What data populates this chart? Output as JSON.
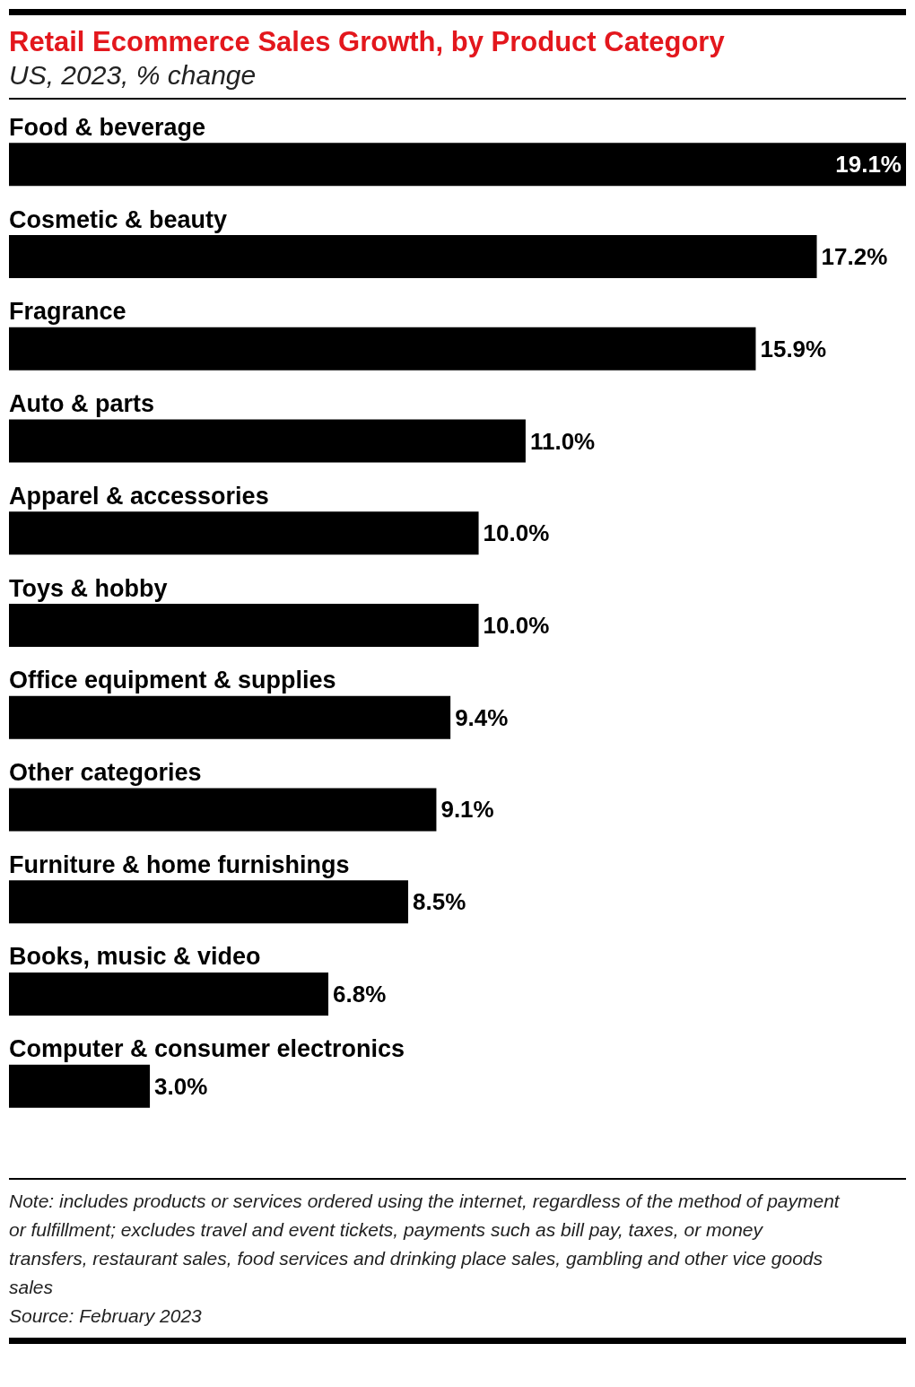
{
  "chart_data": {
    "type": "bar",
    "orientation": "horizontal",
    "title": "Retail Ecommerce Sales Growth, by Product Category",
    "subtitle": "US, 2023, % change",
    "categories": [
      "Food & beverage",
      "Cosmetic & beauty",
      "Fragrance",
      "Auto & parts",
      "Apparel & accessories",
      "Toys & hobby",
      "Office equipment & supplies",
      "Other categories",
      "Furniture & home furnishings",
      "Books, music & video",
      "Computer & consumer electronics"
    ],
    "values": [
      19.1,
      17.2,
      15.9,
      11.0,
      10.0,
      10.0,
      9.4,
      9.1,
      8.5,
      6.8,
      3.0
    ],
    "value_labels": [
      "19.1%",
      "17.2%",
      "15.9%",
      "11.0%",
      "10.0%",
      "10.0%",
      "9.4%",
      "9.1%",
      "8.5%",
      "6.8%",
      "3.0%"
    ],
    "color": "#000000",
    "xlim": [
      0,
      19.1
    ],
    "tick_labels": "y",
    "annotations": [
      "Note: includes products or services ordered using the internet, regardless of the method of payment or fulfillment; excludes travel and event tickets, payments such as bill pay, taxes, or money transfers, restaurant sales, food services and drinking place sales, gambling and other vice goods sales",
      "Source: February 2023"
    ]
  }
}
